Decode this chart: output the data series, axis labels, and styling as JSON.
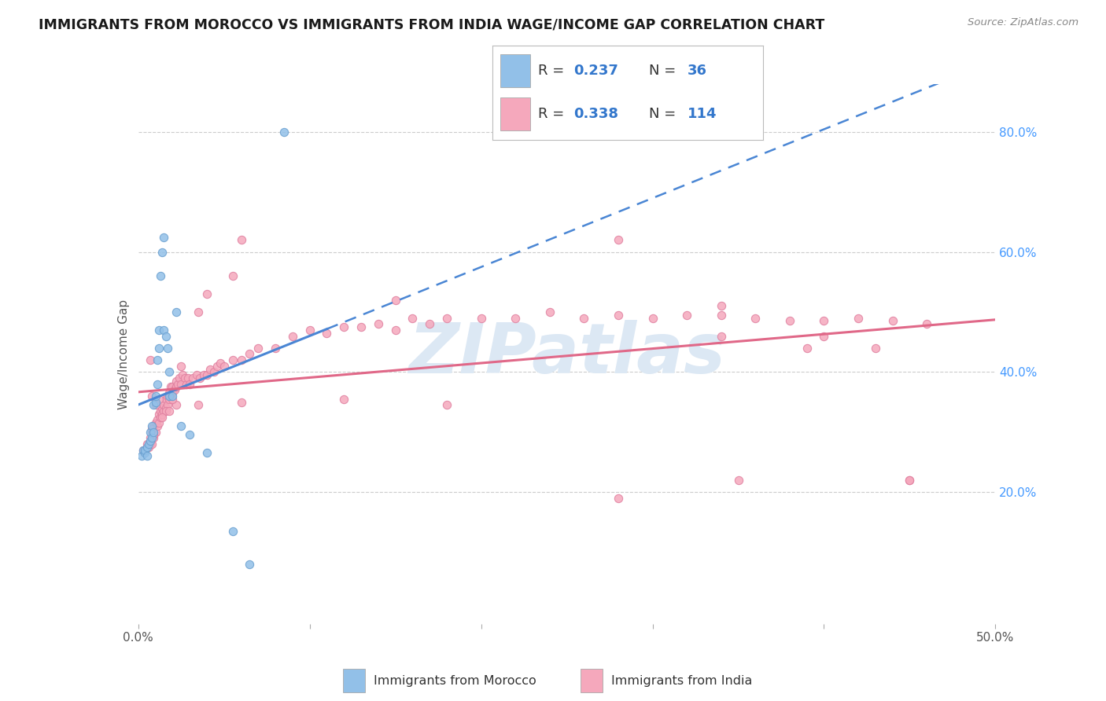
{
  "title": "IMMIGRANTS FROM MOROCCO VS IMMIGRANTS FROM INDIA WAGE/INCOME GAP CORRELATION CHART",
  "source": "Source: ZipAtlas.com",
  "ylabel": "Wage/Income Gap",
  "xlim": [
    0.0,
    0.5
  ],
  "ylim": [
    -0.02,
    0.88
  ],
  "y_ticks_right": [
    0.2,
    0.4,
    0.6,
    0.8
  ],
  "y_tick_labels_right": [
    "20.0%",
    "40.0%",
    "60.0%",
    "80.0%"
  ],
  "morocco_color": "#92c0e8",
  "morocco_edge": "#6aa0d0",
  "india_color": "#f5a8bc",
  "india_edge": "#e080a0",
  "morocco_trend_color": "#4a86d4",
  "india_trend_color": "#e06888",
  "legend_text_color": "#333333",
  "legend_value_color": "#3377cc",
  "watermark": "ZIPatlas",
  "watermark_color": "#dce8f4",
  "background_color": "#ffffff",
  "grid_color": "#cccccc",
  "morocco_scatter_x": [
    0.002,
    0.003,
    0.004,
    0.004,
    0.005,
    0.005,
    0.006,
    0.007,
    0.007,
    0.008,
    0.008,
    0.009,
    0.009,
    0.01,
    0.01,
    0.011,
    0.011,
    0.012,
    0.012,
    0.013,
    0.014,
    0.015,
    0.015,
    0.016,
    0.017,
    0.018,
    0.018,
    0.02,
    0.022,
    0.025,
    0.03,
    0.04,
    0.055,
    0.065,
    0.085
  ],
  "morocco_scatter_y": [
    0.26,
    0.27,
    0.265,
    0.27,
    0.26,
    0.275,
    0.28,
    0.285,
    0.3,
    0.29,
    0.31,
    0.3,
    0.345,
    0.35,
    0.36,
    0.38,
    0.42,
    0.44,
    0.47,
    0.56,
    0.6,
    0.625,
    0.47,
    0.46,
    0.44,
    0.4,
    0.36,
    0.36,
    0.5,
    0.31,
    0.295,
    0.265,
    0.135,
    0.08,
    0.8
  ],
  "india_scatter_x": [
    0.003,
    0.004,
    0.005,
    0.005,
    0.006,
    0.007,
    0.007,
    0.008,
    0.008,
    0.009,
    0.009,
    0.01,
    0.01,
    0.011,
    0.011,
    0.012,
    0.012,
    0.013,
    0.013,
    0.014,
    0.014,
    0.015,
    0.015,
    0.016,
    0.016,
    0.017,
    0.017,
    0.018,
    0.018,
    0.019,
    0.019,
    0.02,
    0.02,
    0.021,
    0.022,
    0.022,
    0.023,
    0.024,
    0.025,
    0.026,
    0.027,
    0.028,
    0.029,
    0.03,
    0.032,
    0.034,
    0.036,
    0.038,
    0.04,
    0.042,
    0.044,
    0.046,
    0.048,
    0.05,
    0.055,
    0.06,
    0.065,
    0.07,
    0.08,
    0.09,
    0.1,
    0.11,
    0.12,
    0.13,
    0.14,
    0.15,
    0.16,
    0.17,
    0.18,
    0.2,
    0.22,
    0.24,
    0.26,
    0.28,
    0.3,
    0.32,
    0.34,
    0.36,
    0.38,
    0.4,
    0.42,
    0.44,
    0.46,
    0.022,
    0.035,
    0.06,
    0.12,
    0.18,
    0.28,
    0.35,
    0.04,
    0.055,
    0.035,
    0.025,
    0.02,
    0.016,
    0.018,
    0.014,
    0.012,
    0.01,
    0.009,
    0.008,
    0.008,
    0.007,
    0.06,
    0.15,
    0.28,
    0.34,
    0.39,
    0.43,
    0.45,
    0.45,
    0.4,
    0.34
  ],
  "india_scatter_y": [
    0.27,
    0.27,
    0.275,
    0.28,
    0.275,
    0.28,
    0.29,
    0.28,
    0.3,
    0.29,
    0.31,
    0.3,
    0.315,
    0.31,
    0.32,
    0.315,
    0.33,
    0.325,
    0.335,
    0.33,
    0.34,
    0.335,
    0.345,
    0.34,
    0.355,
    0.345,
    0.36,
    0.355,
    0.365,
    0.36,
    0.375,
    0.365,
    0.375,
    0.37,
    0.375,
    0.385,
    0.38,
    0.39,
    0.38,
    0.395,
    0.39,
    0.38,
    0.39,
    0.38,
    0.39,
    0.395,
    0.39,
    0.395,
    0.395,
    0.405,
    0.4,
    0.41,
    0.415,
    0.41,
    0.42,
    0.42,
    0.43,
    0.44,
    0.44,
    0.46,
    0.47,
    0.465,
    0.475,
    0.475,
    0.48,
    0.47,
    0.49,
    0.48,
    0.49,
    0.49,
    0.49,
    0.5,
    0.49,
    0.495,
    0.49,
    0.495,
    0.495,
    0.49,
    0.485,
    0.485,
    0.49,
    0.485,
    0.48,
    0.345,
    0.345,
    0.35,
    0.355,
    0.345,
    0.19,
    0.22,
    0.53,
    0.56,
    0.5,
    0.41,
    0.355,
    0.335,
    0.335,
    0.325,
    0.355,
    0.345,
    0.295,
    0.305,
    0.36,
    0.42,
    0.62,
    0.52,
    0.62,
    0.51,
    0.44,
    0.44,
    0.22,
    0.22,
    0.46,
    0.46
  ]
}
